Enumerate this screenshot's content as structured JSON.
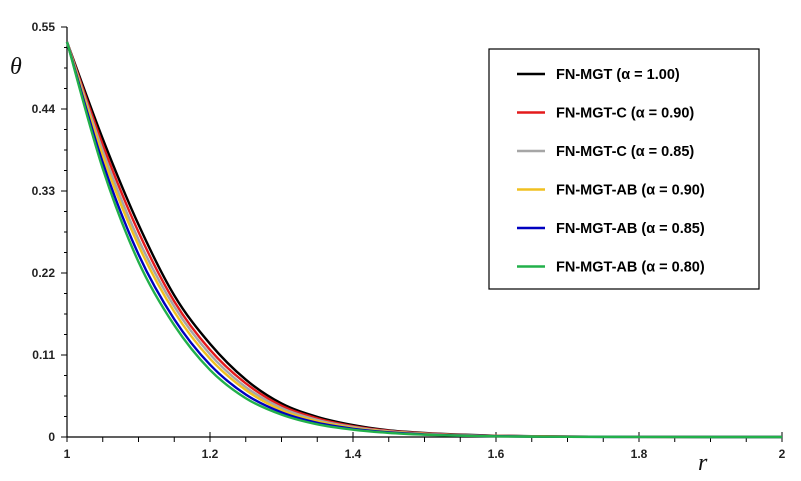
{
  "chart_data": {
    "type": "line",
    "title": "",
    "xlabel": "r",
    "ylabel": "θ",
    "xlim": [
      1,
      2
    ],
    "ylim": [
      0,
      0.55
    ],
    "x_ticks": [
      "1",
      "1.2",
      "1.4",
      "1.6",
      "1.8",
      "2"
    ],
    "y_ticks": [
      "0",
      "0.11",
      "0.22",
      "0.33",
      "0.44",
      "0.55"
    ],
    "x_tick_values": [
      1,
      1.2,
      1.4,
      1.6,
      1.8,
      2
    ],
    "y_tick_values": [
      0,
      0.11,
      0.22,
      0.33,
      0.44,
      0.55
    ],
    "grid": false,
    "legend_position": "top-right",
    "x": [
      1.0,
      1.05,
      1.1,
      1.15,
      1.2,
      1.25,
      1.3,
      1.35,
      1.4,
      1.45,
      1.5,
      1.55,
      1.6,
      1.65,
      1.7,
      1.8,
      1.9,
      2.0
    ],
    "series": [
      {
        "name": "FN-MGT (α = 1.00)",
        "color": "#000000",
        "values": [
          0.53,
          0.4,
          0.285,
          0.19,
          0.125,
          0.077,
          0.045,
          0.027,
          0.016,
          0.009,
          0.0055,
          0.0032,
          0.0018,
          0.001,
          0.0006,
          0.0002,
          0.0001,
          0.0
        ]
      },
      {
        "name": "FN-MGT-C (α = 0.90)",
        "color": "#e41a1c",
        "values": [
          0.53,
          0.392,
          0.275,
          0.182,
          0.117,
          0.072,
          0.042,
          0.025,
          0.0145,
          0.0083,
          0.0049,
          0.0028,
          0.0016,
          0.0009,
          0.0005,
          0.0002,
          0.0001,
          0.0
        ]
      },
      {
        "name": "FN-MGT-C (α = 0.85)",
        "color": "#a6a6a6",
        "values": [
          0.53,
          0.384,
          0.265,
          0.175,
          0.111,
          0.067,
          0.039,
          0.023,
          0.0135,
          0.0076,
          0.0044,
          0.0025,
          0.0014,
          0.0008,
          0.0004,
          0.0001,
          0.0,
          0.0
        ]
      },
      {
        "name": "FN-MGT-AB (α = 0.90)",
        "color": "#f0c020",
        "values": [
          0.53,
          0.377,
          0.257,
          0.168,
          0.105,
          0.063,
          0.036,
          0.021,
          0.0122,
          0.0069,
          0.004,
          0.0022,
          0.0012,
          0.0007,
          0.0004,
          0.0001,
          0.0,
          0.0
        ]
      },
      {
        "name": "FN-MGT-AB (α = 0.85)",
        "color": "#0000c0",
        "values": [
          0.53,
          0.368,
          0.245,
          0.158,
          0.097,
          0.057,
          0.033,
          0.019,
          0.011,
          0.0062,
          0.0035,
          0.002,
          0.0011,
          0.0006,
          0.0003,
          0.0001,
          0.0,
          0.0
        ]
      },
      {
        "name": "FN-MGT-AB (α = 0.80)",
        "color": "#22b04a",
        "values": [
          0.53,
          0.36,
          0.235,
          0.15,
          0.09,
          0.052,
          0.03,
          0.017,
          0.0098,
          0.0055,
          0.0031,
          0.0017,
          0.0009,
          0.0005,
          0.0003,
          0.0001,
          0.0,
          0.0
        ]
      }
    ]
  }
}
